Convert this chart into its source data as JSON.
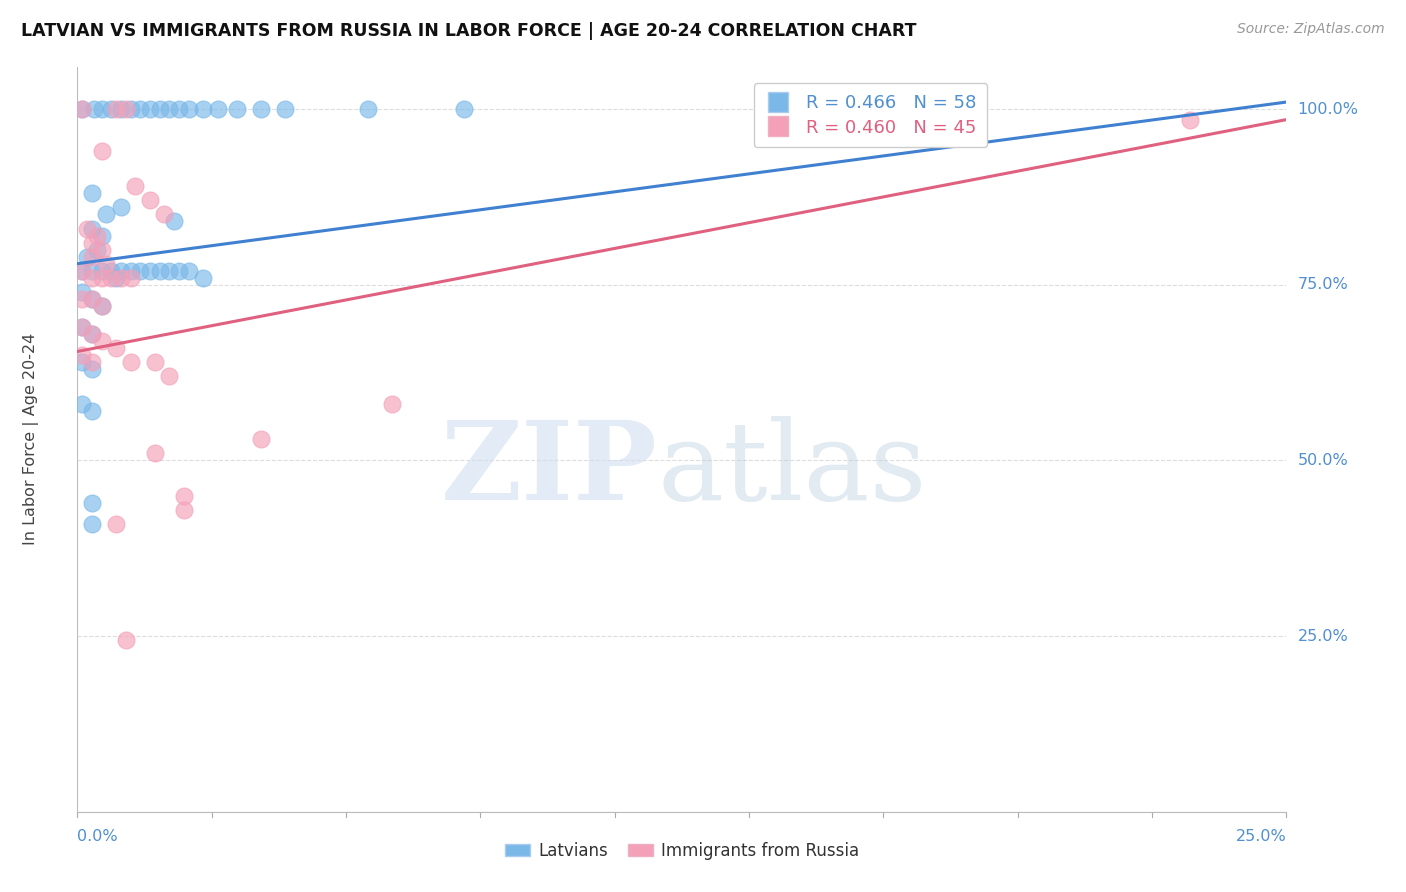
{
  "title": "LATVIAN VS IMMIGRANTS FROM RUSSIA IN LABOR FORCE | AGE 20-24 CORRELATION CHART",
  "source": "Source: ZipAtlas.com",
  "ylabel": "In Labor Force | Age 20-24",
  "blue_color": "#7ab8e8",
  "pink_color": "#f4a0b8",
  "blue_line_color": "#4080d0",
  "pink_line_color": "#e06080",
  "text_color_blue": "#5090d0",
  "grid_color": "#dddddd",
  "xlim": [
    0.0,
    0.25
  ],
  "ylim": [
    0.0,
    1.06
  ],
  "blue_line": [
    [
      0.0,
      0.78
    ],
    [
      0.25,
      1.01
    ]
  ],
  "pink_line": [
    [
      0.0,
      0.655
    ],
    [
      0.25,
      0.985
    ]
  ],
  "blue_scatter": [
    [
      0.001,
      1.0
    ],
    [
      0.0035,
      1.0
    ],
    [
      0.005,
      1.0
    ],
    [
      0.007,
      1.0
    ],
    [
      0.009,
      1.0
    ],
    [
      0.011,
      1.0
    ],
    [
      0.013,
      1.0
    ],
    [
      0.015,
      1.0
    ],
    [
      0.017,
      1.0
    ],
    [
      0.019,
      1.0
    ],
    [
      0.021,
      1.0
    ],
    [
      0.023,
      1.0
    ],
    [
      0.026,
      1.0
    ],
    [
      0.029,
      1.0
    ],
    [
      0.033,
      1.0
    ],
    [
      0.038,
      1.0
    ],
    [
      0.043,
      1.0
    ],
    [
      0.003,
      0.88
    ],
    [
      0.006,
      0.85
    ],
    [
      0.009,
      0.86
    ],
    [
      0.003,
      0.83
    ],
    [
      0.005,
      0.82
    ],
    [
      0.002,
      0.79
    ],
    [
      0.004,
      0.8
    ],
    [
      0.001,
      0.77
    ],
    [
      0.003,
      0.77
    ],
    [
      0.005,
      0.77
    ],
    [
      0.007,
      0.77
    ],
    [
      0.009,
      0.77
    ],
    [
      0.011,
      0.77
    ],
    [
      0.013,
      0.77
    ],
    [
      0.015,
      0.77
    ],
    [
      0.017,
      0.77
    ],
    [
      0.019,
      0.77
    ],
    [
      0.021,
      0.77
    ],
    [
      0.023,
      0.77
    ],
    [
      0.001,
      0.74
    ],
    [
      0.003,
      0.73
    ],
    [
      0.005,
      0.72
    ],
    [
      0.001,
      0.69
    ],
    [
      0.003,
      0.68
    ],
    [
      0.001,
      0.64
    ],
    [
      0.003,
      0.63
    ],
    [
      0.001,
      0.58
    ],
    [
      0.003,
      0.57
    ],
    [
      0.008,
      0.76
    ],
    [
      0.026,
      0.76
    ],
    [
      0.003,
      0.44
    ],
    [
      0.003,
      0.41
    ],
    [
      0.02,
      0.84
    ],
    [
      0.06,
      1.0
    ],
    [
      0.08,
      1.0
    ]
  ],
  "pink_scatter": [
    [
      0.001,
      1.0
    ],
    [
      0.005,
      0.94
    ],
    [
      0.008,
      1.0
    ],
    [
      0.01,
      1.0
    ],
    [
      0.012,
      0.89
    ],
    [
      0.015,
      0.87
    ],
    [
      0.018,
      0.85
    ],
    [
      0.003,
      0.81
    ],
    [
      0.005,
      0.8
    ],
    [
      0.002,
      0.83
    ],
    [
      0.004,
      0.82
    ],
    [
      0.003,
      0.79
    ],
    [
      0.006,
      0.78
    ],
    [
      0.001,
      0.77
    ],
    [
      0.003,
      0.76
    ],
    [
      0.005,
      0.76
    ],
    [
      0.007,
      0.76
    ],
    [
      0.009,
      0.76
    ],
    [
      0.011,
      0.76
    ],
    [
      0.001,
      0.73
    ],
    [
      0.003,
      0.73
    ],
    [
      0.005,
      0.72
    ],
    [
      0.001,
      0.69
    ],
    [
      0.003,
      0.68
    ],
    [
      0.005,
      0.67
    ],
    [
      0.001,
      0.65
    ],
    [
      0.003,
      0.64
    ],
    [
      0.008,
      0.66
    ],
    [
      0.011,
      0.64
    ],
    [
      0.016,
      0.64
    ],
    [
      0.019,
      0.62
    ],
    [
      0.016,
      0.51
    ],
    [
      0.022,
      0.45
    ],
    [
      0.022,
      0.43
    ],
    [
      0.008,
      0.41
    ],
    [
      0.065,
      0.58
    ],
    [
      0.01,
      0.245
    ],
    [
      0.23,
      0.985
    ],
    [
      0.038,
      0.53
    ]
  ]
}
